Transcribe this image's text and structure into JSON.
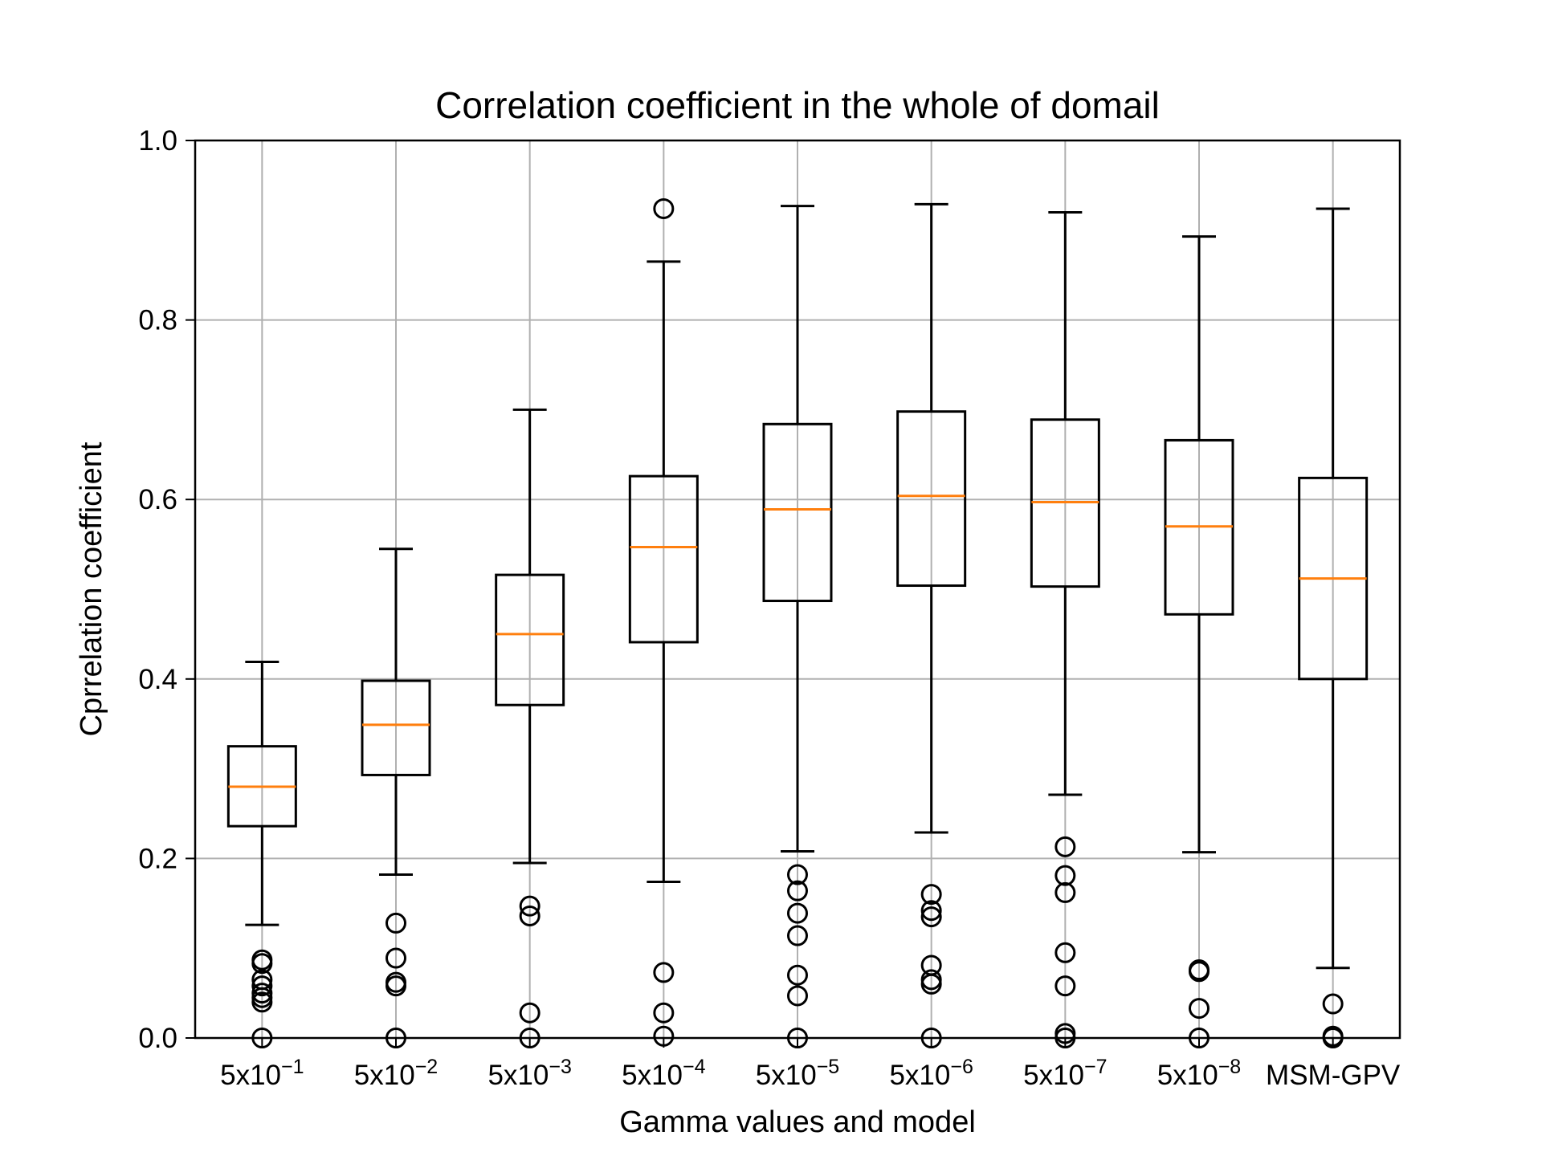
{
  "chart_data": {
    "type": "box",
    "title": "Correlation coefficient in the whole of domail",
    "xlabel": "Gamma values and model",
    "ylabel": "Cprrelation coefficient",
    "ylim": [
      0.0,
      1.0
    ],
    "yticks": [
      "0.0",
      "0.2",
      "0.4",
      "0.6",
      "0.8",
      "1.0"
    ],
    "grid": true,
    "categories": [
      {
        "base": "5x10",
        "exp": "−1"
      },
      {
        "base": "5x10",
        "exp": "−2"
      },
      {
        "base": "5x10",
        "exp": "−3"
      },
      {
        "base": "5x10",
        "exp": "−4"
      },
      {
        "base": "5x10",
        "exp": "−5"
      },
      {
        "base": "5x10",
        "exp": "−6"
      },
      {
        "base": "5x10",
        "exp": "−7"
      },
      {
        "base": "5x10",
        "exp": "−8"
      },
      {
        "base": "MSM-GPV",
        "exp": ""
      }
    ],
    "boxes": [
      {
        "whisker_low": 0.126,
        "q1": 0.236,
        "median": 0.28,
        "q3": 0.325,
        "whisker_high": 0.419,
        "outliers": [
          0.087,
          0.083,
          0.065,
          0.058,
          0.05,
          0.045,
          0.04,
          0.0
        ]
      },
      {
        "whisker_low": 0.182,
        "q1": 0.293,
        "median": 0.349,
        "q3": 0.398,
        "whisker_high": 0.545,
        "outliers": [
          0.128,
          0.089,
          0.062,
          0.058,
          0.0
        ]
      },
      {
        "whisker_low": 0.195,
        "q1": 0.371,
        "median": 0.45,
        "q3": 0.516,
        "whisker_high": 0.7,
        "outliers": [
          0.147,
          0.136,
          0.028,
          0.0
        ]
      },
      {
        "whisker_low": 0.174,
        "q1": 0.441,
        "median": 0.547,
        "q3": 0.626,
        "whisker_high": 0.865,
        "outliers": [
          0.924,
          0.073,
          0.028,
          0.002
        ]
      },
      {
        "whisker_low": 0.208,
        "q1": 0.487,
        "median": 0.589,
        "q3": 0.684,
        "whisker_high": 0.927,
        "outliers": [
          0.182,
          0.164,
          0.139,
          0.114,
          0.07,
          0.047,
          0.0
        ]
      },
      {
        "whisker_low": 0.229,
        "q1": 0.504,
        "median": 0.604,
        "q3": 0.698,
        "whisker_high": 0.929,
        "outliers": [
          0.16,
          0.142,
          0.135,
          0.081,
          0.065,
          0.06,
          0.0
        ]
      },
      {
        "whisker_low": 0.271,
        "q1": 0.503,
        "median": 0.597,
        "q3": 0.689,
        "whisker_high": 0.92,
        "outliers": [
          0.213,
          0.181,
          0.162,
          0.095,
          0.058,
          0.005,
          0.0
        ]
      },
      {
        "whisker_low": 0.207,
        "q1": 0.472,
        "median": 0.57,
        "q3": 0.666,
        "whisker_high": 0.893,
        "outliers": [
          0.076,
          0.074,
          0.033,
          0.0
        ]
      },
      {
        "whisker_low": 0.078,
        "q1": 0.4,
        "median": 0.512,
        "q3": 0.624,
        "whisker_high": 0.924,
        "outliers": [
          0.038,
          0.002,
          0.0
        ]
      }
    ],
    "colors": {
      "box": "#000000",
      "median": "#ff7f0e",
      "grid": "#b0b0b0",
      "background": "#ffffff"
    }
  }
}
